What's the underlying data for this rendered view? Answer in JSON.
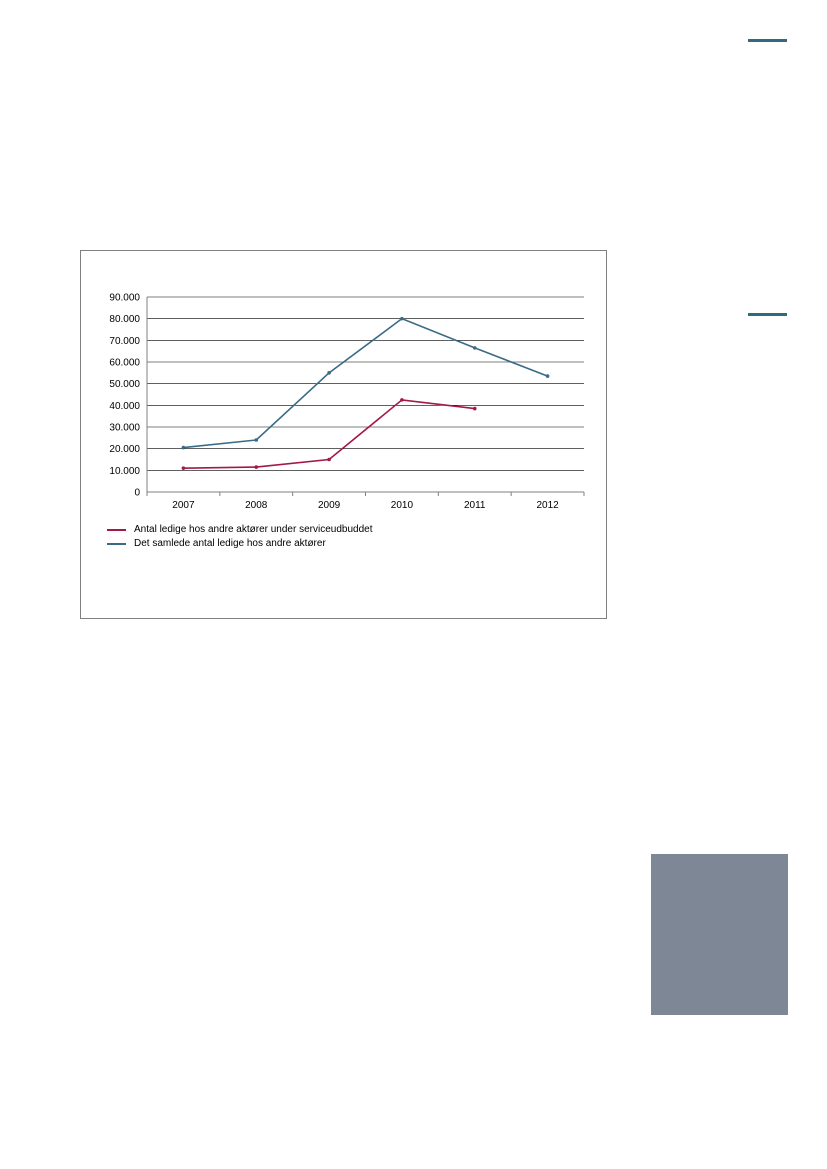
{
  "page": {
    "accent_color": "#2e6b7c",
    "side_block_color": "#7e8796"
  },
  "chart_data": {
    "type": "line",
    "title": "",
    "xlabel": "",
    "ylabel": "",
    "categories": [
      "2007",
      "2008",
      "2009",
      "2010",
      "2011",
      "2012"
    ],
    "ylim": [
      0,
      90000
    ],
    "y_ticks": [
      "0",
      "10.000",
      "20.000",
      "30.000",
      "40.000",
      "50.000",
      "60.000",
      "70.000",
      "80.000",
      "90.000"
    ],
    "grid": true,
    "legend_position": "bottom-left",
    "series": [
      {
        "name": "Antal ledige hos andre aktører under serviceudbuddet",
        "color": "#a3174a",
        "values": [
          11000,
          11500,
          15000,
          42500,
          38500,
          null
        ]
      },
      {
        "name": "Det samlede antal ledige hos andre aktører",
        "color": "#3a6b86",
        "values": [
          20500,
          24000,
          55000,
          80000,
          66500,
          53500
        ]
      }
    ]
  }
}
